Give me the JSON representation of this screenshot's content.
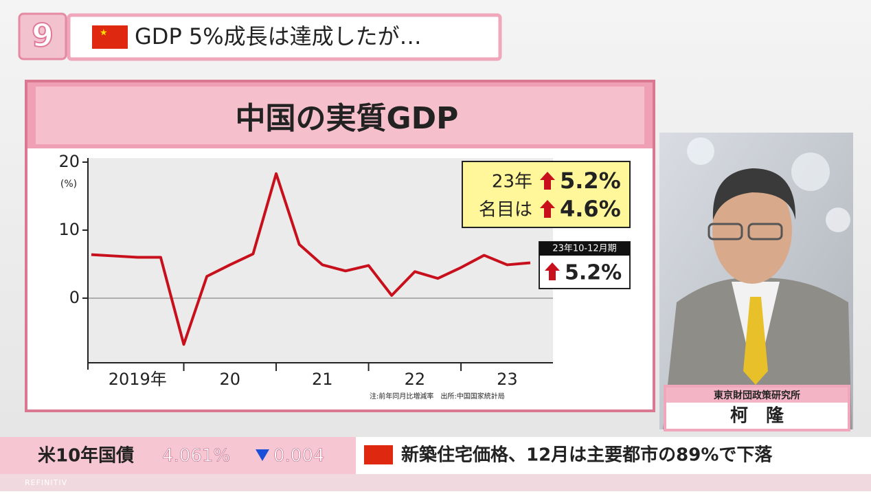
{
  "header": {
    "logo": "9",
    "headline": "GDP 5%成長は達成したが…"
  },
  "chart_data": {
    "type": "line",
    "title": "中国の実質GDP",
    "y_unit": "(%)",
    "categories": [
      "2019年",
      null,
      null,
      null,
      "20",
      null,
      null,
      null,
      "21",
      null,
      null,
      null,
      "22",
      null,
      null,
      null,
      "23",
      null,
      null,
      null
    ],
    "series": [
      {
        "color": "#c8101c",
        "values": [
          6.4,
          6.2,
          6.0,
          6.0,
          -6.8,
          3.2,
          4.9,
          6.5,
          18.3,
          7.9,
          4.9,
          4.0,
          4.8,
          0.4,
          3.9,
          2.9,
          4.5,
          6.3,
          4.9,
          5.2
        ]
      }
    ],
    "ylim": [
      -9.5,
      20.6
    ],
    "yticks": [
      0,
      10,
      20
    ],
    "grid": false,
    "annotations": [
      "23年",
      "5.2%",
      "名目は",
      "4.6%",
      "23年10-12月期",
      "5.2%"
    ],
    "note": "注:前年同月比増減率　出所:中国国家統計局"
  },
  "speaker": {
    "affiliation": "東京財団政策研究所",
    "name": "柯　隆"
  },
  "ticker": {
    "label": "米10年国債",
    "rate": "4.061%",
    "change": "0.004",
    "source": "REFINITIV"
  },
  "news": {
    "headline": "新築住宅価格、12月は主要都市の89%で下落"
  }
}
